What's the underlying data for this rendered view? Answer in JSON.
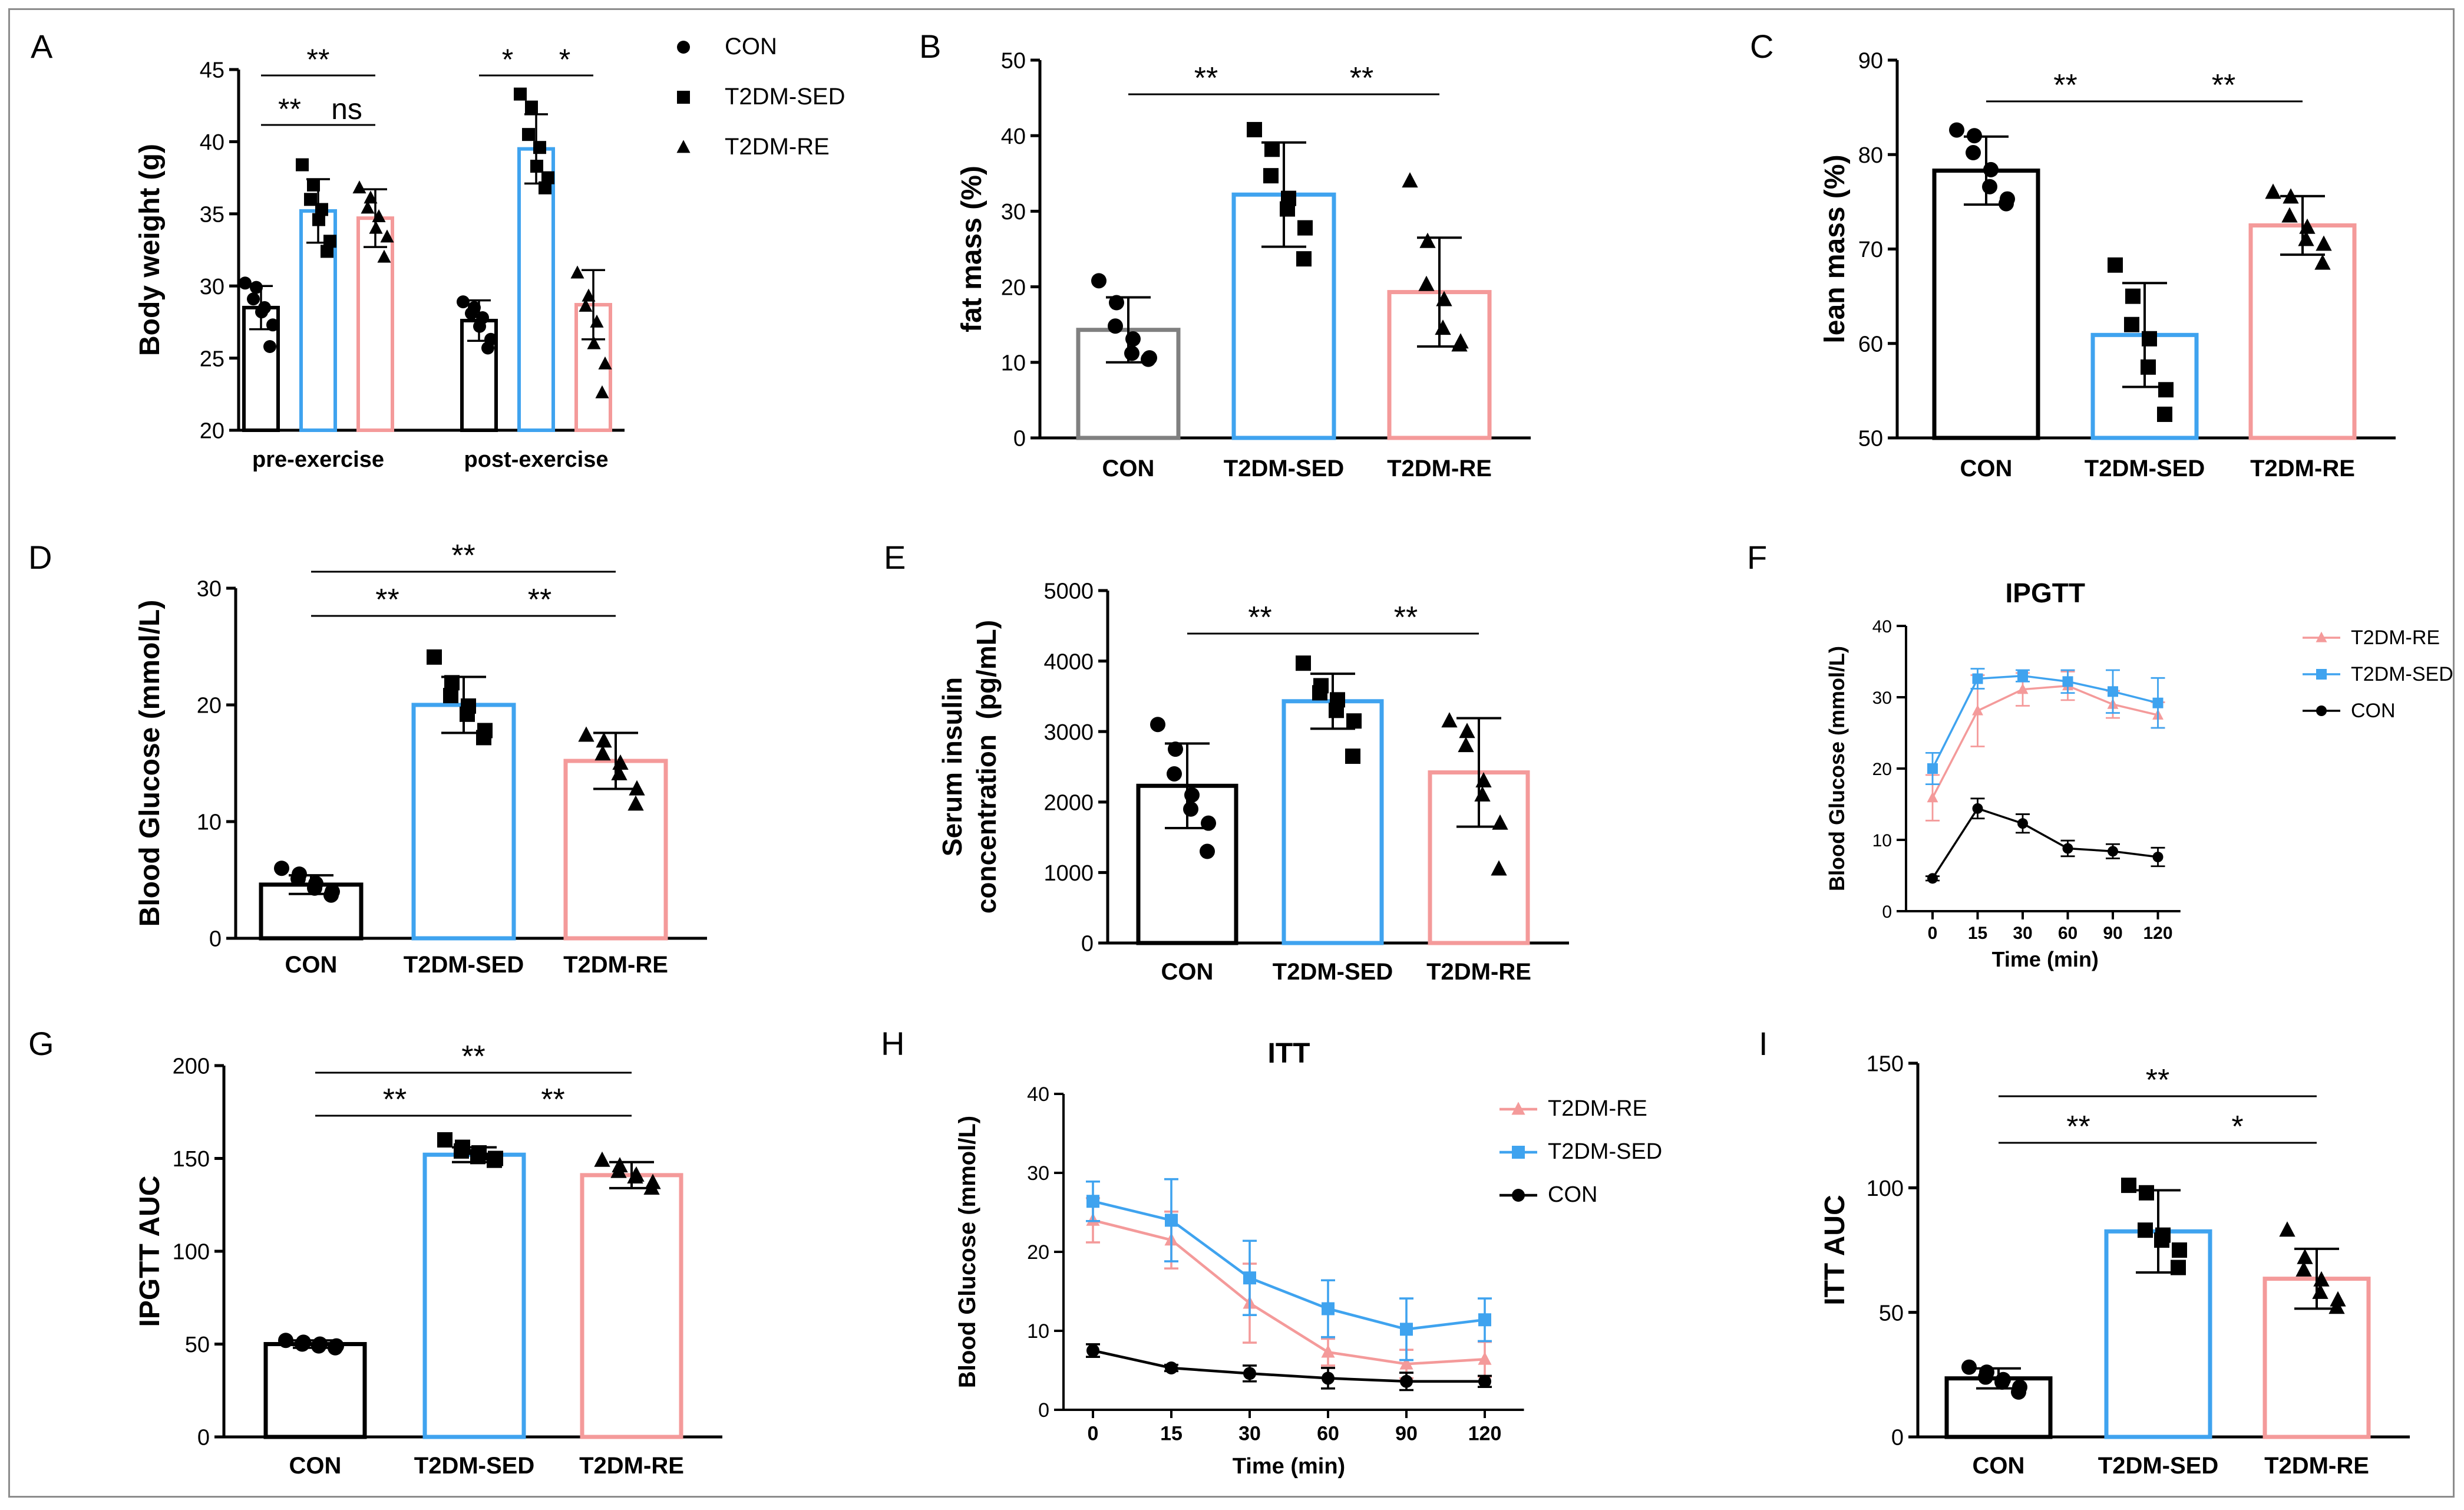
{
  "figure": {
    "panel_count": 9
  },
  "colors": {
    "con": "#000000",
    "sed": "#3fa3ef",
    "re": "#f49a9a",
    "con_bar_b": "#808080"
  },
  "chart_data": [
    {
      "id": "A",
      "type": "bar",
      "label": "A",
      "ylabel": "Body weight (g)",
      "ylim": [
        20,
        45
      ],
      "yticks": [
        20,
        25,
        30,
        35,
        40,
        45
      ],
      "categories": [
        "pre-exercise",
        "post-exercise"
      ],
      "series": [
        {
          "name": "CON",
          "color_key": "con",
          "values": [
            28.5,
            27.6
          ],
          "err": [
            1.5,
            1.4
          ],
          "points": [
            [
              30.2,
              29.9,
              29.1,
              28.5,
              28.2,
              27.3,
              25.8
            ],
            [
              28.9,
              28.5,
              28.1,
              27.8,
              27.2,
              26.3,
              25.7
            ]
          ]
        },
        {
          "name": "T2DM-SED",
          "color_key": "sed",
          "values": [
            35.2,
            39.5
          ],
          "err": [
            2.2,
            2.4
          ],
          "points": [
            [
              38.4,
              37.0,
              36.0,
              35.3,
              34.6,
              33.1,
              32.4
            ],
            [
              43.3,
              42.4,
              40.5,
              39.6,
              38.3,
              37.5,
              36.8
            ]
          ]
        },
        {
          "name": "T2DM-RE",
          "color_key": "re",
          "values": [
            34.7,
            28.7
          ],
          "err": [
            2.0,
            2.4
          ],
          "points": [
            [
              36.8,
              36.1,
              35.4,
              34.8,
              34.0,
              33.4,
              32.0
            ],
            [
              30.9,
              29.3,
              28.6,
              27.5,
              26.0,
              24.6,
              22.6
            ]
          ]
        }
      ],
      "legend": [
        "CON",
        "T2DM-SED",
        "T2DM-RE"
      ],
      "annotations": [
        "**",
        "**",
        "ns",
        "*",
        "*"
      ]
    },
    {
      "id": "B",
      "type": "bar",
      "label": "B",
      "ylabel": "fat  mass (%)",
      "ylim": [
        0,
        50
      ],
      "yticks": [
        0,
        10,
        20,
        30,
        40,
        50
      ],
      "categories": [
        "CON",
        "T2DM-SED",
        "T2DM-RE"
      ],
      "values": [
        14.3,
        32.2,
        19.3
      ],
      "err": [
        4.3,
        6.9,
        7.2
      ],
      "color_keys": [
        "con_bar_b",
        "sed",
        "re"
      ],
      "points": [
        [
          20.8,
          17.9,
          14.8,
          13.1,
          11.2,
          10.6,
          10.4
        ],
        [
          40.8,
          38.2,
          34.7,
          31.7,
          30.3,
          27.8,
          23.7
        ],
        [
          34.0,
          26.0,
          20.3,
          18.3,
          14.5,
          12.7,
          12.3
        ]
      ],
      "annotations": [
        "**",
        "**"
      ]
    },
    {
      "id": "C",
      "type": "bar",
      "label": "C",
      "ylabel": "lean  mass (%)",
      "ylim": [
        50,
        90
      ],
      "yticks": [
        50,
        60,
        70,
        80,
        90
      ],
      "categories": [
        "CON",
        "T2DM-SED",
        "T2DM-RE"
      ],
      "values": [
        78.3,
        60.9,
        72.5
      ],
      "err": [
        3.6,
        5.5,
        3.1
      ],
      "color_keys": [
        "con",
        "sed",
        "re"
      ],
      "points": [
        [
          82.6,
          82.0,
          80.2,
          78.4,
          76.6,
          75.3,
          74.8
        ],
        [
          68.3,
          65.0,
          62.0,
          60.5,
          57.5,
          55.1,
          52.5
        ],
        [
          76.0,
          75.5,
          73.5,
          72.3,
          71.0,
          70.5,
          68.5
        ]
      ],
      "annotations": [
        "**",
        "**"
      ]
    },
    {
      "id": "D",
      "type": "bar",
      "label": "D",
      "ylabel": "Blood Glucose (mmol/L)",
      "ylim": [
        0,
        30
      ],
      "yticks": [
        0,
        10,
        20,
        30
      ],
      "categories": [
        "CON",
        "T2DM-SED",
        "T2DM-RE"
      ],
      "values": [
        4.6,
        20.0,
        15.2
      ],
      "err": [
        0.8,
        2.4,
        2.4
      ],
      "color_keys": [
        "con",
        "sed",
        "re"
      ],
      "points": [
        [
          6.0,
          5.5,
          5.1,
          4.7,
          4.3,
          4.0,
          3.7
        ],
        [
          24.1,
          21.9,
          20.8,
          19.9,
          19.2,
          17.8,
          17.2
        ],
        [
          17.4,
          16.9,
          15.8,
          15.0,
          14.1,
          12.8,
          11.5
        ]
      ],
      "annotations": [
        "**",
        "**",
        "**"
      ]
    },
    {
      "id": "E",
      "type": "bar",
      "label": "E",
      "ylabel": "Serum insulin concentration (pg/mL)",
      "ylabel_lines": [
        "Serum insulin",
        "concentration  (pg/mL)"
      ],
      "ylim": [
        0,
        5000
      ],
      "yticks": [
        0,
        1000,
        2000,
        3000,
        4000,
        5000
      ],
      "categories": [
        "CON",
        "T2DM-SED",
        "T2DM-RE"
      ],
      "values": [
        2230,
        3430,
        2420
      ],
      "err": [
        600,
        390,
        770
      ],
      "color_keys": [
        "con",
        "sed",
        "re"
      ],
      "points": [
        [
          3100,
          2750,
          2400,
          2100,
          1900,
          1700,
          1300
        ],
        [
          3970,
          3650,
          3550,
          3450,
          3300,
          3150,
          2650
        ],
        [
          3150,
          3000,
          2800,
          2300,
          2100,
          1700,
          1050
        ]
      ],
      "annotations": [
        "**",
        "**"
      ]
    },
    {
      "id": "F",
      "type": "line",
      "label": "F",
      "title": "IPGTT",
      "xlabel": "Time (min)",
      "ylabel": "Blood Glucose (mmol/L)",
      "ylim": [
        0,
        40
      ],
      "yticks": [
        0,
        10,
        20,
        30,
        40
      ],
      "x": [
        "0",
        "15",
        "30",
        "60",
        "90",
        "120"
      ],
      "series": [
        {
          "name": "T2DM-RE",
          "color_key": "re",
          "marker": "triangle",
          "values": [
            15.9,
            28.1,
            31.1,
            31.6,
            29.0,
            27.5
          ],
          "err": [
            3.2,
            5.0,
            2.3,
            2.0,
            1.9,
            1.8
          ]
        },
        {
          "name": "T2DM-SED",
          "color_key": "sed",
          "marker": "square",
          "values": [
            20.0,
            32.6,
            33.0,
            32.2,
            30.8,
            29.2
          ],
          "err": [
            2.2,
            1.4,
            0.8,
            1.6,
            3.0,
            3.5
          ]
        },
        {
          "name": "CON",
          "color_key": "con",
          "marker": "circle",
          "values": [
            4.6,
            14.4,
            12.3,
            8.8,
            8.4,
            7.6
          ],
          "err": [
            0.3,
            1.4,
            1.3,
            1.1,
            1.0,
            1.3
          ]
        }
      ]
    },
    {
      "id": "G",
      "type": "bar",
      "label": "G",
      "ylabel": "IPGTT AUC",
      "ylim": [
        0,
        200
      ],
      "yticks": [
        0,
        50,
        100,
        150,
        200
      ],
      "categories": [
        "CON",
        "T2DM-SED",
        "T2DM-RE"
      ],
      "values": [
        50,
        152,
        141
      ],
      "err": [
        2,
        4,
        7
      ],
      "color_keys": [
        "con",
        "sed",
        "re"
      ],
      "points": [
        [
          52,
          51,
          50,
          50,
          49,
          49,
          48
        ],
        [
          160,
          156,
          154,
          153,
          151,
          150,
          149
        ],
        [
          149,
          146,
          143,
          141,
          140,
          137,
          134
        ]
      ],
      "annotations": [
        "**",
        "**",
        "**"
      ]
    },
    {
      "id": "H",
      "type": "line",
      "label": "H",
      "title": "ITT",
      "xlabel": "Time (min)",
      "ylabel": "Blood Glucose (mmol/L)",
      "ylim": [
        0,
        40
      ],
      "yticks": [
        0,
        10,
        20,
        30,
        40
      ],
      "x": [
        "0",
        "15",
        "30",
        "60",
        "90",
        "120"
      ],
      "series": [
        {
          "name": "T2DM-RE",
          "color_key": "re",
          "marker": "triangle",
          "values": [
            24.0,
            21.5,
            13.5,
            7.3,
            5.8,
            6.4
          ],
          "err": [
            2.8,
            3.6,
            5.0,
            1.7,
            1.8,
            2.2
          ]
        },
        {
          "name": "T2DM-SED",
          "color_key": "sed",
          "marker": "square",
          "values": [
            26.4,
            24.0,
            16.7,
            12.8,
            10.2,
            11.4
          ],
          "err": [
            2.5,
            5.2,
            4.7,
            3.6,
            3.9,
            2.7
          ]
        },
        {
          "name": "CON",
          "color_key": "con",
          "marker": "circle",
          "values": [
            7.5,
            5.3,
            4.6,
            4.0,
            3.6,
            3.6
          ],
          "err": [
            0.8,
            0.4,
            1.0,
            1.3,
            1.1,
            0.7
          ]
        }
      ]
    },
    {
      "id": "I",
      "type": "bar",
      "label": "I",
      "ylabel": "ITT AUC",
      "ylim": [
        0,
        150
      ],
      "yticks": [
        0,
        50,
        100,
        150
      ],
      "categories": [
        "CON",
        "T2DM-SED",
        "T2DM-RE"
      ],
      "values": [
        23.5,
        82.5,
        63.5
      ],
      "err": [
        4.0,
        16.5,
        12.0
      ],
      "color_keys": [
        "con",
        "sed",
        "re"
      ],
      "points": [
        [
          28,
          26,
          24,
          23,
          22,
          20,
          18
        ],
        [
          101,
          98,
          83,
          81,
          79,
          75,
          68
        ],
        [
          83,
          72,
          67,
          63,
          58,
          55,
          52
        ]
      ],
      "annotations": [
        "**",
        "**",
        "*"
      ]
    }
  ]
}
